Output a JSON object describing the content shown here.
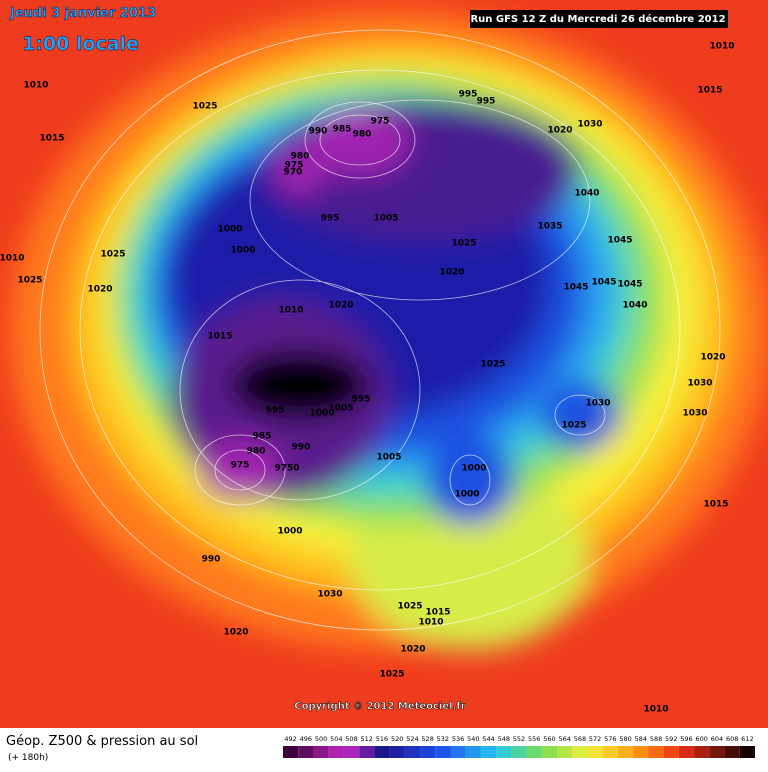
{
  "header": {
    "date": "Jeudi 3 janvier 2013",
    "time": "1:00 locale",
    "run": "Run GFS 12 Z du Mercredi 26 décembre 2012"
  },
  "footer": {
    "title": "Géop. Z500 & pression au sol",
    "subtitle": "(+ 180h)",
    "copyright": "Copyright © 2012 Meteociel.fr"
  },
  "colorbar": {
    "labels": [
      492,
      496,
      500,
      504,
      508,
      512,
      516,
      520,
      524,
      528,
      532,
      536,
      540,
      544,
      548,
      552,
      556,
      560,
      564,
      568,
      572,
      576,
      580,
      584,
      588,
      592,
      596,
      600,
      604,
      608,
      612
    ]
  },
  "pressure_labels": [
    1010,
    1015,
    995,
    995,
    1025,
    975,
    990,
    985,
    980,
    1020,
    1030,
    1015,
    1010,
    980,
    975,
    970,
    1040,
    995,
    1005,
    1035,
    1000,
    1025,
    1045,
    1000,
    1025,
    1010,
    1020,
    1025,
    1020,
    1045,
    1045,
    1045,
    1010,
    1020,
    1040,
    1015,
    1020,
    1025,
    1030,
    995,
    1000,
    1005,
    995,
    1030,
    1030,
    1025,
    985,
    990,
    980,
    1005,
    975,
    9750,
    1000,
    1000,
    1015,
    1000,
    990,
    1030,
    1025,
    1015,
    1010,
    1020,
    1020,
    1025,
    1010
  ]
}
